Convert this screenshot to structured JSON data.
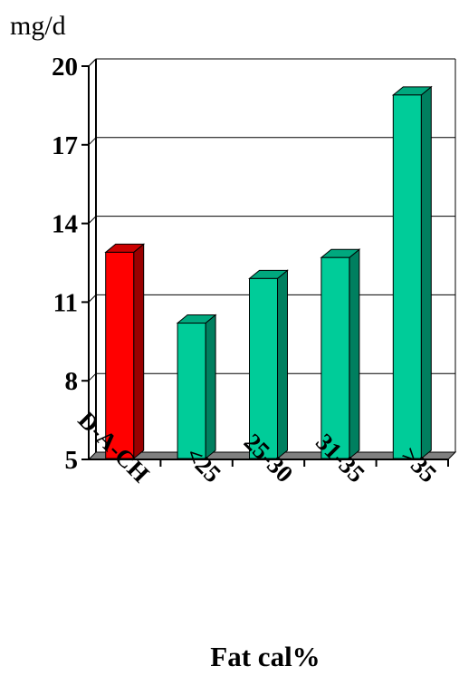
{
  "chart_data": {
    "type": "bar",
    "ylabel": "mg/d",
    "xlabel": "Fat cal%",
    "categories": [
      "D-A-CH",
      "<25",
      "25-30",
      "31-35",
      ">35"
    ],
    "values": [
      12.9,
      10.2,
      11.9,
      12.7,
      18.9
    ],
    "ylim": [
      5,
      20
    ],
    "yticks": [
      5,
      8,
      11,
      14,
      17,
      20
    ],
    "grid": true,
    "legend": "none",
    "colors": {
      "D-A-CH": {
        "front": "#ff0000",
        "side": "#990000",
        "top": "#cc0000"
      },
      "default": {
        "front": "#00cc99",
        "side": "#007f5f",
        "top": "#00a87e"
      },
      "floor": "#808080",
      "grid": "#000000"
    }
  }
}
